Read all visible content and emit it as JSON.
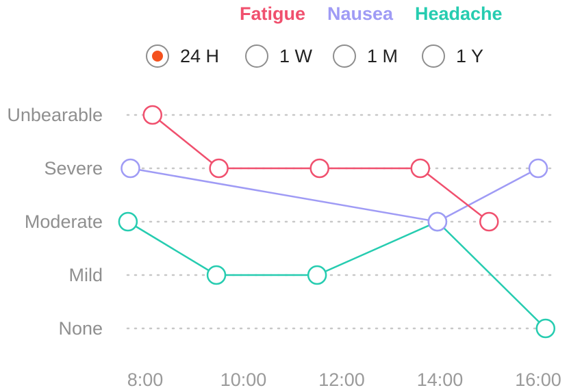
{
  "legend": [
    {
      "name": "Fatigue",
      "color": "#f0506e"
    },
    {
      "name": "Nausea",
      "color": "#9f9bf5"
    },
    {
      "name": "Headache",
      "color": "#26ccb0"
    }
  ],
  "time_ranges": {
    "selected": "24H",
    "options": [
      {
        "label": "24 H",
        "selected": true
      },
      {
        "label": "1 W",
        "selected": false
      },
      {
        "label": "1 M",
        "selected": false
      },
      {
        "label": "1 Y",
        "selected": false
      }
    ],
    "selected_color": "#f4511e"
  },
  "chart_data": {
    "type": "line",
    "title": "",
    "xlabel": "",
    "ylabel": "",
    "levels": [
      "None",
      "Mild",
      "Moderate",
      "Severe",
      "Unbearable"
    ],
    "x_ticks": [
      "8:00",
      "10:00",
      "12:00",
      "14:00",
      "16:00"
    ],
    "x_tick_values": [
      8,
      10,
      12,
      14,
      16
    ],
    "xlim": [
      8,
      16
    ],
    "grid": "horizontal-dotted",
    "series": [
      {
        "name": "Fatigue",
        "color": "#f0506e",
        "points": [
          {
            "x": 8.15,
            "y": 4
          },
          {
            "x": 9.5,
            "y": 3
          },
          {
            "x": 11.55,
            "y": 3
          },
          {
            "x": 13.6,
            "y": 3
          },
          {
            "x": 15.0,
            "y": 2
          }
        ]
      },
      {
        "name": "Nausea",
        "color": "#9f9bf5",
        "points": [
          {
            "x": 7.7,
            "y": 3
          },
          {
            "x": 13.95,
            "y": 2
          },
          {
            "x": 16.0,
            "y": 3
          }
        ]
      },
      {
        "name": "Headache",
        "color": "#26ccb0",
        "points": [
          {
            "x": 7.65,
            "y": 2
          },
          {
            "x": 9.45,
            "y": 1
          },
          {
            "x": 11.5,
            "y": 1
          },
          {
            "x": 13.95,
            "y": 2
          },
          {
            "x": 16.15,
            "y": 0
          }
        ]
      }
    ]
  }
}
